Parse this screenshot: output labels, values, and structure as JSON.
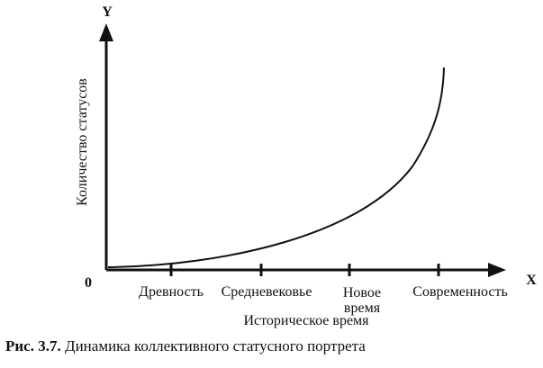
{
  "axes": {
    "y_letter": "Y",
    "x_letter": "X",
    "origin": "0",
    "y_label": "Количество статусов",
    "x_label": "Историческое время"
  },
  "categories": [
    "Древность",
    "Средневековье",
    "Новое время",
    "Современность"
  ],
  "caption": {
    "number": "Рис. 3.7.",
    "text": "Динамика коллективного статусного портрета"
  }
}
